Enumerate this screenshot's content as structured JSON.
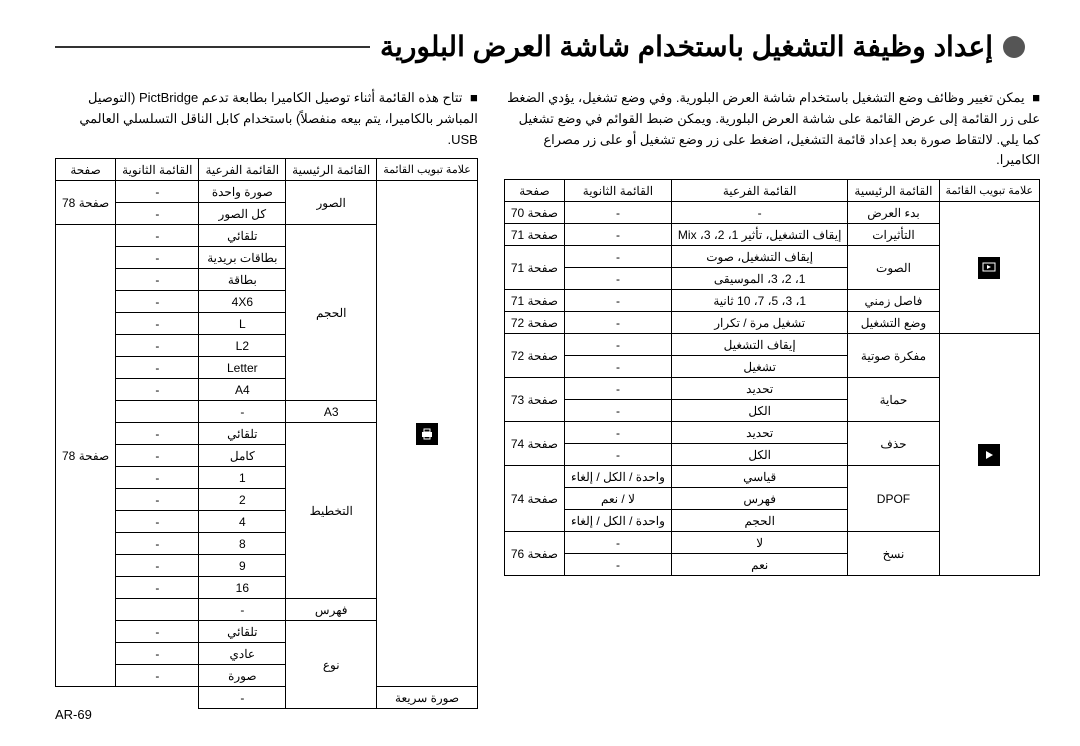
{
  "title": "إعداد وظيفة التشغيل باستخدام شاشة العرض البلورية",
  "page_number": "AR-69",
  "right_column": {
    "note": "يمكن تغيير وظائف وضع التشغيل باستخدام شاشة العرض البلورية. وفي وضع تشغيل، يؤدي الضغط على زر القائمة إلى عرض القائمة على شاشة العرض البلورية. ويمكن ضبط القوائم في وضع تشغيل كما يلي. لالتقاط صورة بعد إعداد قائمة التشغيل، اضغط على زر وضع تشغيل أو على زر مصراع الكاميرا.",
    "table": {
      "headers": [
        "علامة تبويب القائمة",
        "القائمة الرئيسية",
        "القائمة الفرعية",
        "القائمة الثانوية",
        "صفحة"
      ],
      "rows": [
        {
          "main": "بدء العرض",
          "sub": "-",
          "sec": "-",
          "page": "صفحة 70",
          "icon": "play-settings",
          "icon_rowspan": 6
        },
        {
          "main": "التأثيرات",
          "sub": "إيقاف التشغيل، تأثير 1، 2، 3، Mix",
          "sec": "-",
          "page": "صفحة 71"
        },
        {
          "main": "الصوت",
          "main_rowspan": 2,
          "sub": "إيقاف التشغيل، صوت",
          "sec": "-",
          "page": "صفحة 71",
          "page_rowspan": 2
        },
        {
          "sub": "1، 2، 3، الموسيقى",
          "sec": "-"
        },
        {
          "main": "فاصل زمني",
          "sub": "1، 3، 5، 7، 10 ثانية",
          "sec": "-",
          "page": "صفحة 71"
        },
        {
          "main": "وضع التشغيل",
          "sub": "تشغيل مرة / تكرار",
          "sec": "-",
          "page": "صفحة 72"
        },
        {
          "main": "مفكرة صوتية",
          "main_rowspan": 2,
          "sub": "إيقاف التشغيل",
          "sec": "-",
          "page": "صفحة 72",
          "page_rowspan": 2,
          "icon": "playback",
          "icon_rowspan": 11
        },
        {
          "sub": "تشغيل",
          "sec": "-"
        },
        {
          "main": "حماية",
          "main_rowspan": 2,
          "sub": "تحديد",
          "sec": "-",
          "page": "صفحة 73",
          "page_rowspan": 2
        },
        {
          "sub": "الكل",
          "sec": "-"
        },
        {
          "main": "حذف",
          "main_rowspan": 2,
          "sub": "تحديد",
          "sec": "-",
          "page": "صفحة 74",
          "page_rowspan": 2
        },
        {
          "sub": "الكل",
          "sec": "-"
        },
        {
          "main": "DPOF",
          "main_rowspan": 3,
          "sub": "قياسي",
          "sec": "واحدة / الكل / إلغاء",
          "page": "صفحة 74",
          "page_rowspan": 3
        },
        {
          "sub": "فهرس",
          "sec": "لا / نعم"
        },
        {
          "sub": "الحجم",
          "sec": "واحدة / الكل / إلغاء"
        },
        {
          "main": "نسخ",
          "main_rowspan": 2,
          "sub": "لا",
          "sec": "-",
          "page": "صفحة 76",
          "page_rowspan": 2
        },
        {
          "sub": "نعم",
          "sec": "-"
        }
      ]
    }
  },
  "left_column": {
    "note": "تتاح هذه القائمة أثناء توصيل الكاميرا بطابعة تدعم PictBridge (التوصيل المباشر بالكاميرا، يتم بيعه منفصلاً) باستخدام كابل الناقل التسلسلي العالمي USB.",
    "table": {
      "headers": [
        "علامة تبويب القائمة",
        "القائمة الرئيسية",
        "القائمة الفرعية",
        "القائمة الثانوية",
        "صفحة"
      ],
      "rows": [
        {
          "main": "الصور",
          "main_rowspan": 2,
          "sub": "صورة واحدة",
          "sec": "-",
          "page": "صفحة 78",
          "page_rowspan": 2,
          "icon": "printer",
          "icon_rowspan": 23
        },
        {
          "sub": "كل الصور",
          "sec": "-"
        },
        {
          "main": "الحجم",
          "main_rowspan": 8,
          "sub": "تلقائي",
          "sec": "-",
          "page": "صفحة 78",
          "page_rowspan": 21
        },
        {
          "sub": "بطاقات بريدية",
          "sec": "-"
        },
        {
          "sub": "بطاقة",
          "sec": "-"
        },
        {
          "sub": "4X6",
          "sec": "-"
        },
        {
          "sub": "L",
          "sec": "-"
        },
        {
          "sub": "L2",
          "sec": "-"
        },
        {
          "sub": "Letter",
          "sec": "-"
        },
        {
          "sub": "A4",
          "sec": "-"
        },
        {
          "sub": "A3",
          "sec": "-"
        },
        {
          "main": "التخطيط",
          "main_rowspan": 8,
          "sub": "تلقائي",
          "sec": "-"
        },
        {
          "sub": "كامل",
          "sec": "-"
        },
        {
          "sub": "1",
          "sec": "-"
        },
        {
          "sub": "2",
          "sec": "-"
        },
        {
          "sub": "4",
          "sec": "-"
        },
        {
          "sub": "8",
          "sec": "-"
        },
        {
          "sub": "9",
          "sec": "-"
        },
        {
          "sub": "16",
          "sec": "-"
        },
        {
          "sub": "فهرس",
          "sec": "-"
        },
        {
          "main": "نوع",
          "main_rowspan": 4,
          "sub": "تلقائي",
          "sec": "-"
        },
        {
          "sub": "عادي",
          "sec": "-"
        },
        {
          "sub": "صورة",
          "sec": "-"
        },
        {
          "sub": "صورة سريعة",
          "sec": "-"
        }
      ]
    }
  },
  "colors": {
    "text": "#000000",
    "background": "#ffffff",
    "dot": "#555555",
    "border": "#000000"
  }
}
